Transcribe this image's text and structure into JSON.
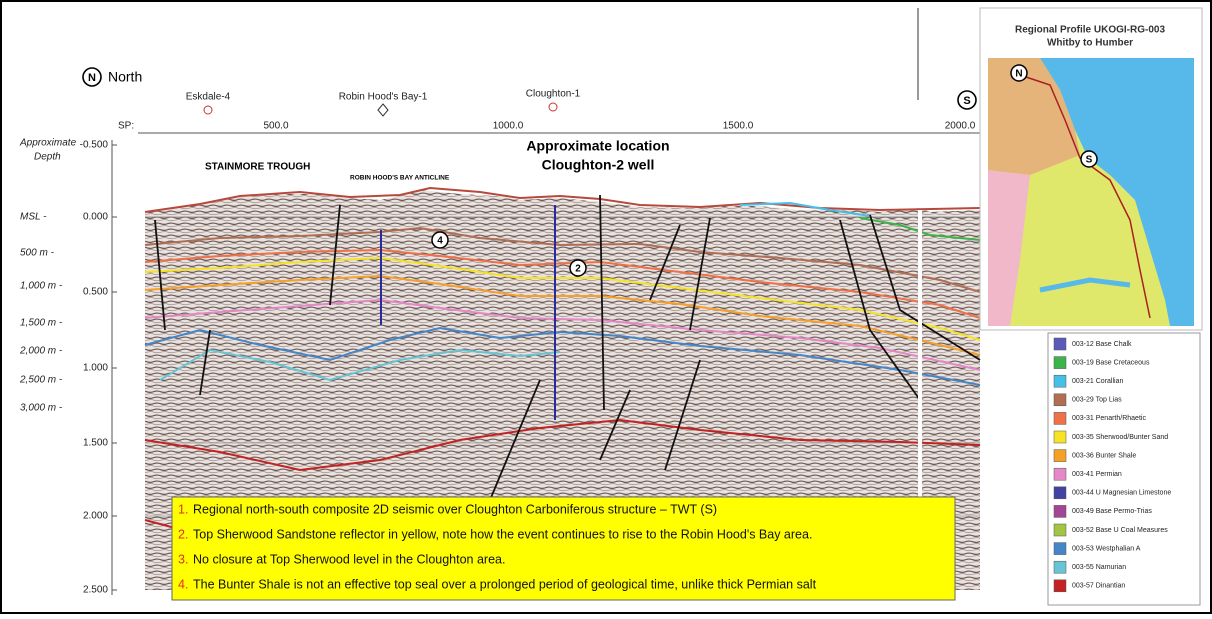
{
  "header": {
    "north_symbol": "N",
    "north": "North",
    "south_symbol": "S"
  },
  "wells": [
    {
      "label": "Eskdale-4"
    },
    {
      "label": "Robin Hood's Bay-1"
    },
    {
      "label": "Cloughton-1"
    }
  ],
  "sp_axis": {
    "label": "SP:",
    "ticks": [
      "500.0",
      "1000.0",
      "1500.0",
      "2000.0"
    ]
  },
  "depth_axis": {
    "label_line1": "Approximate",
    "label_line2": "Depth",
    "labels": [
      "MSL -",
      "500 m -",
      "1,000 m -",
      "1,500 m -",
      "2,000 m -",
      "2,500 m -",
      "3,000 m -"
    ]
  },
  "time_axis": {
    "ticks": [
      "-0.500",
      "0.000",
      "0.500",
      "1.000",
      "1.500",
      "2.000",
      "2.500"
    ]
  },
  "annotations": {
    "stainmore": "STAINMORE TROUGH",
    "anticline": "ROBIN HOOD'S BAY ANTICLINE",
    "cloughton_line1": "Approximate location",
    "cloughton_line2": "Cloughton-2 well",
    "marker_4": "4",
    "marker_2": "2"
  },
  "notes": [
    {
      "num": "1.",
      "text": "Regional north-south composite 2D seismic over Cloughton Carboniferous structure – TWT (S)"
    },
    {
      "num": "2.",
      "text": "Top Sherwood Sandstone reflector in yellow, note how the event continues to rise to the Robin Hood's Bay area."
    },
    {
      "num": "3.",
      "text": "No closure at Top Sherwood level in the Cloughton area."
    },
    {
      "num": "4.",
      "text": "The Bunter Shale is not an effective top seal over a prolonged period of geological time, unlike thick Permian salt"
    }
  ],
  "map": {
    "title_line1": "Regional Profile UKOGI-RG-003",
    "title_line2": "Whitby to Humber",
    "north_symbol": "N",
    "south_symbol": "S"
  },
  "legend": [
    {
      "label": "003-12 Base Chalk",
      "color": "#5a5ab8"
    },
    {
      "label": "003-19 Base Cretaceous",
      "color": "#3cb44a"
    },
    {
      "label": "003-21 Corallian",
      "color": "#46c0e6"
    },
    {
      "label": "003-29 Top Lias",
      "color": "#b06e52"
    },
    {
      "label": "003-31 Penarth/Rhaetic",
      "color": "#f07048"
    },
    {
      "label": "003-35 Sherwood/Bunter Sand",
      "color": "#f6e424"
    },
    {
      "label": "003-36 Bunter Shale",
      "color": "#f6a028"
    },
    {
      "label": "003-41 Permian",
      "color": "#e488c8"
    },
    {
      "label": "003-44 U Magnesian Limestone",
      "color": "#4242a4"
    },
    {
      "label": "003-49 Base Permo-Trias",
      "color": "#a44494"
    },
    {
      "label": "003-52 Base U Coal Measures",
      "color": "#a4c444"
    },
    {
      "label": "003-53 Westphalian A",
      "color": "#4486c8"
    },
    {
      "label": "003-55 Namurian",
      "color": "#66c4d4"
    },
    {
      "label": "003-57 Dinantian",
      "color": "#c42222"
    }
  ]
}
